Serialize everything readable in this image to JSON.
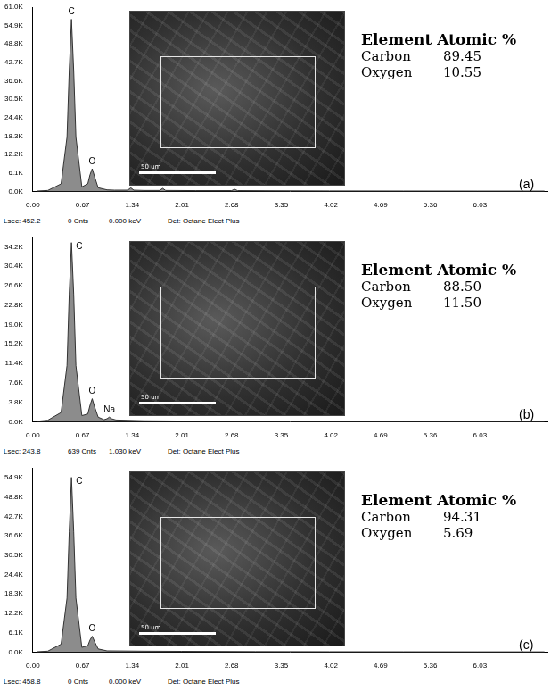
{
  "chart_data": [
    {
      "type": "line",
      "color": "#8c8c8c",
      "grid": false,
      "tick_labels": true,
      "xlim": [
        0,
        6.94
      ],
      "xticks": [
        {
          "value": 0,
          "label": "0.00"
        },
        0.67,
        1.34,
        2.01,
        2.68,
        3.35,
        4.02,
        4.69,
        5.36,
        6.03
      ],
      "ylim": [
        0,
        61000
      ],
      "yticks": [
        {
          "value": 0,
          "label": "0.0K"
        },
        {
          "value": 6100,
          "label": "6.1K"
        },
        {
          "value": 12200,
          "label": "12.2K"
        },
        {
          "value": 18300,
          "label": "18.3K"
        },
        {
          "value": 24400,
          "label": "24.4K"
        },
        {
          "value": 30500,
          "label": "30.5K"
        },
        {
          "value": 36600,
          "label": "36.6K"
        },
        {
          "value": 42700,
          "label": "42.7K"
        },
        {
          "value": 48800,
          "label": "48.8K"
        },
        {
          "value": 54900,
          "label": "54.9K"
        },
        {
          "value": 61000,
          "label": "61.0K"
        }
      ],
      "x": [
        0.05,
        0.2,
        0.38,
        0.46,
        0.49,
        0.52,
        0.55,
        0.58,
        0.66,
        0.74,
        0.77,
        0.8,
        0.83,
        0.88,
        1.0,
        1.1,
        1.28,
        1.32,
        1.36,
        1.5,
        1.71,
        1.75,
        1.79,
        2.2,
        2.68,
        2.72,
        2.76,
        3.2,
        4.0,
        5.0,
        6.0,
        6.9
      ],
      "values": [
        100,
        300,
        2500,
        18000,
        40000,
        57000,
        40000,
        18000,
        1500,
        2500,
        5500,
        7500,
        5000,
        1200,
        500,
        400,
        400,
        1200,
        400,
        300,
        300,
        1000,
        300,
        250,
        250,
        700,
        250,
        200,
        150,
        120,
        100,
        100
      ],
      "annotations": [
        {
          "text": "C",
          "x": 0.52,
          "y": 57000
        },
        {
          "text": "O",
          "x": 0.8,
          "y": 7500
        }
      ],
      "panel_label": "(a)",
      "scale_bar": "50 um",
      "table": {
        "header": [
          "Element",
          "Atomic %"
        ],
        "rows": [
          [
            "Carbon",
            "89.45"
          ],
          [
            "Oxygen",
            "10.55"
          ]
        ]
      },
      "footer": [
        "Lsec: 452.2",
        "0 Cnts",
        "0.000 keV",
        "Det: Octane Elect Plus"
      ]
    },
    {
      "type": "line",
      "color": "#8c8c8c",
      "grid": false,
      "tick_labels": true,
      "xlim": [
        0,
        6.94
      ],
      "xticks": [
        {
          "value": 0,
          "label": "0.00"
        },
        0.67,
        1.34,
        2.01,
        2.68,
        3.35,
        4.02,
        4.69,
        5.36,
        6.03
      ],
      "ylim": [
        0,
        36000
      ],
      "yticks": [
        {
          "value": 0,
          "label": "0.0K"
        },
        {
          "value": 3800,
          "label": "3.8K"
        },
        {
          "value": 7600,
          "label": "7.6K"
        },
        {
          "value": 11400,
          "label": "11.4K"
        },
        {
          "value": 15200,
          "label": "15.2K"
        },
        {
          "value": 19000,
          "label": "19.0K"
        },
        {
          "value": 22800,
          "label": "22.8K"
        },
        {
          "value": 26600,
          "label": "26.6K"
        },
        {
          "value": 30400,
          "label": "30.4K"
        },
        {
          "value": 34200,
          "label": "34.2K"
        }
      ],
      "x": [
        0.05,
        0.2,
        0.38,
        0.46,
        0.49,
        0.52,
        0.55,
        0.58,
        0.66,
        0.74,
        0.77,
        0.8,
        0.83,
        0.88,
        0.96,
        1.0,
        1.03,
        1.06,
        1.12,
        1.5,
        2.0,
        3.0,
        4.0,
        5.0,
        6.0,
        6.9
      ],
      "values": [
        100,
        300,
        1800,
        11000,
        25000,
        35000,
        25000,
        11000,
        1200,
        1500,
        3200,
        4500,
        3000,
        900,
        400,
        600,
        900,
        600,
        350,
        200,
        150,
        120,
        100,
        80,
        60,
        60
      ],
      "annotations": [
        {
          "text": "C",
          "x": 0.52,
          "y": 35000
        },
        {
          "text": "O",
          "x": 0.8,
          "y": 4500
        },
        {
          "text": "Na",
          "x": 1.03,
          "y": 900
        }
      ],
      "panel_label": "(b)",
      "scale_bar": "50 um",
      "table": {
        "header": [
          "Element",
          "Atomic %"
        ],
        "rows": [
          [
            "Carbon",
            "88.50"
          ],
          [
            "Oxygen",
            "11.50"
          ]
        ]
      },
      "footer": [
        "Lsec: 243.8",
        "639 Cnts",
        "1.030 keV",
        "Det: Octane Elect Plus"
      ]
    },
    {
      "type": "line",
      "color": "#8c8c8c",
      "grid": false,
      "tick_labels": true,
      "xlim": [
        0,
        6.94
      ],
      "xticks": [
        {
          "value": 0,
          "label": "0.00"
        },
        0.67,
        1.34,
        2.01,
        2.68,
        3.35,
        4.02,
        4.69,
        5.36,
        6.03
      ],
      "ylim": [
        0,
        58000
      ],
      "yticks": [
        {
          "value": 0,
          "label": "0.0K"
        },
        {
          "value": 6100,
          "label": "6.1K"
        },
        {
          "value": 12200,
          "label": "12.2K"
        },
        {
          "value": 18300,
          "label": "18.3K"
        },
        {
          "value": 24400,
          "label": "24.4K"
        },
        {
          "value": 30500,
          "label": "30.5K"
        },
        {
          "value": 36600,
          "label": "36.6K"
        },
        {
          "value": 42700,
          "label": "42.7K"
        },
        {
          "value": 48800,
          "label": "48.8K"
        },
        {
          "value": 54900,
          "label": "54.9K"
        }
      ],
      "x": [
        0.05,
        0.2,
        0.38,
        0.46,
        0.49,
        0.52,
        0.55,
        0.58,
        0.66,
        0.74,
        0.77,
        0.8,
        0.83,
        0.88,
        1.0,
        1.5,
        2.0,
        3.0,
        4.0,
        5.0,
        6.0,
        6.9
      ],
      "values": [
        100,
        300,
        2500,
        17000,
        38000,
        55000,
        38000,
        17000,
        1500,
        2000,
        3800,
        5000,
        3400,
        1000,
        400,
        300,
        250,
        150,
        120,
        100,
        80,
        80
      ],
      "annotations": [
        {
          "text": "C",
          "x": 0.52,
          "y": 55000
        },
        {
          "text": "O",
          "x": 0.8,
          "y": 5000
        }
      ],
      "panel_label": "(c)",
      "scale_bar": "50 um",
      "table": {
        "header": [
          "Element",
          "Atomic %"
        ],
        "rows": [
          [
            "Carbon",
            "94.31"
          ],
          [
            "Oxygen",
            "5.69"
          ]
        ]
      },
      "footer": [
        "Lsec: 458.8",
        "0 Cnts",
        "0.000 keV",
        "Det: Octane Elect Plus"
      ]
    }
  ]
}
